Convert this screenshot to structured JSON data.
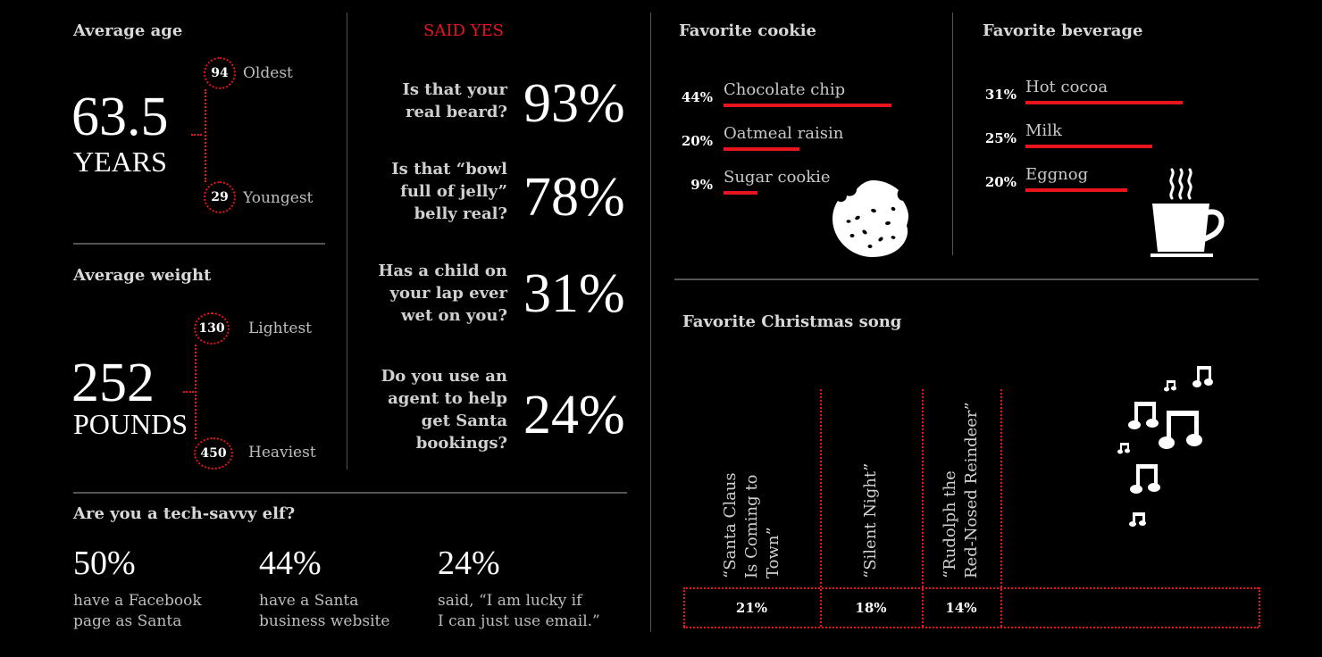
{
  "age": {
    "heading": "Average age",
    "value": "63.5",
    "unit": "YEARS",
    "oldest": {
      "value": "94",
      "label": "Oldest"
    },
    "youngest": {
      "value": "29",
      "label": "Youngest"
    }
  },
  "weight": {
    "heading": "Average weight",
    "value": "252",
    "unit": "POUNDS",
    "lightest": {
      "value": "130",
      "label": "Lightest"
    },
    "heaviest": {
      "value": "450",
      "label": "Heaviest"
    }
  },
  "said_yes": {
    "heading": "SAID YES",
    "items": [
      {
        "question": [
          "Is that your",
          "real beard?"
        ],
        "percent": "93%"
      },
      {
        "question": [
          "Is that “bowl",
          "full of jelly”",
          "belly real?"
        ],
        "percent": "78%"
      },
      {
        "question": [
          "Has a child on",
          "your lap ever",
          "wet on you?"
        ],
        "percent": "31%"
      },
      {
        "question": [
          "Do you use an",
          "agent to help",
          "get Santa",
          "bookings?"
        ],
        "percent": "24%"
      }
    ]
  },
  "tech": {
    "heading": "Are you a tech-savvy elf?",
    "items": [
      {
        "percent": "50%",
        "text": [
          "have a Facebook",
          "page as Santa"
        ]
      },
      {
        "percent": "44%",
        "text": [
          "have a Santa",
          "business website"
        ]
      },
      {
        "percent": "24%",
        "text": [
          "said, “I am lucky if",
          "I can just use email.”"
        ]
      }
    ]
  },
  "colors": {
    "accent": "#e8141e",
    "background": "#000000"
  },
  "icons": {
    "cookie": "cookie-icon",
    "cup": "coffee-cup-icon",
    "notes": "music-notes-icon"
  },
  "chart_data": [
    {
      "type": "bar",
      "title": "Favorite cookie",
      "categories": [
        "Chocolate chip",
        "Oatmeal raisin",
        "Sugar cookie"
      ],
      "values": [
        44,
        20,
        9
      ],
      "labels": [
        "44%",
        "20%",
        "9%"
      ]
    },
    {
      "type": "bar",
      "title": "Favorite beverage",
      "categories": [
        "Hot cocoa",
        "Milk",
        "Eggnog"
      ],
      "values": [
        31,
        25,
        20
      ],
      "labels": [
        "31%",
        "25%",
        "20%"
      ]
    },
    {
      "type": "table",
      "title": "Favorite Christmas song",
      "categories": [
        "“Santa Claus Is Coming to Town”",
        "“Silent Night”",
        "“Rudolph the Red-Nosed Reindeer”"
      ],
      "category_lines": [
        [
          "“Santa Claus",
          "Is Coming to",
          "Town”"
        ],
        [
          "“Silent Night”"
        ],
        [
          "“Rudolph the",
          "Red-Nosed Reindeer”"
        ]
      ],
      "values": [
        21,
        18,
        14
      ],
      "labels": [
        "21%",
        "18%",
        "14%"
      ]
    }
  ]
}
